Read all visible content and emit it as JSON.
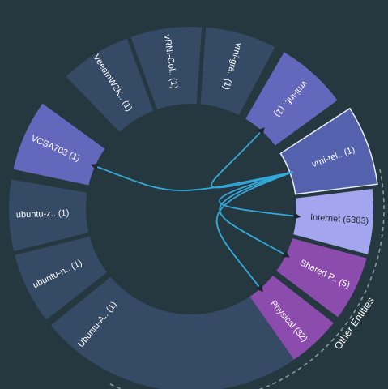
{
  "colors": {
    "background": "#26383f",
    "segment_default": "#354a64",
    "segment_selected_fill": "#5461ad",
    "segment_selected_stroke": "#e8ecf5",
    "segment_vm_highlight": "#6468bd",
    "segment_internet": "#a3a6ef",
    "segment_other": "#8c4cae",
    "flow_line": "#33a9d9",
    "label_light": "#ffffff",
    "label_dark": "#1d2730",
    "group_arc": "#8797a3"
  },
  "segments": [
    {
      "label": "VeeamW2K.. (1)",
      "style": "default"
    },
    {
      "label": "vRNI-Col.. (1)",
      "style": "default"
    },
    {
      "label": "vrni-gra.. (1)",
      "style": "default"
    },
    {
      "label": "vrni-inf.. (1)",
      "style": "vm_highlight"
    },
    {
      "label": "vrni-tel.. (1)",
      "style": "selected"
    },
    {
      "label": "Internet (5383)",
      "style": "internet"
    },
    {
      "label": "Shared P.. (5)",
      "style": "other"
    },
    {
      "label": "Physical (32)",
      "style": "other"
    },
    {
      "label": "",
      "style": "default"
    },
    {
      "label": "Ubuntu-A.. (1)",
      "style": "default"
    },
    {
      "label": "ubuntu-n.. (1)",
      "style": "default"
    },
    {
      "label": "ubuntu-z.. (1)",
      "style": "default"
    },
    {
      "label": "VCSA703 (1)",
      "style": "vm_highlight"
    }
  ],
  "groups": [
    {
      "label": "Other Entities"
    }
  ],
  "flows": [
    {
      "from": "vrni-tel.. (1)",
      "to": "VCSA703 (1)"
    },
    {
      "from": "vrni-tel.. (1)",
      "to": "vrni-inf.. (1)"
    },
    {
      "from": "vrni-tel.. (1)",
      "to": "Internet (5383)"
    },
    {
      "from": "vrni-tel.. (1)",
      "to": "Shared P.. (5)"
    },
    {
      "from": "vrni-tel.. (1)",
      "to": "Physical (32)"
    }
  ]
}
